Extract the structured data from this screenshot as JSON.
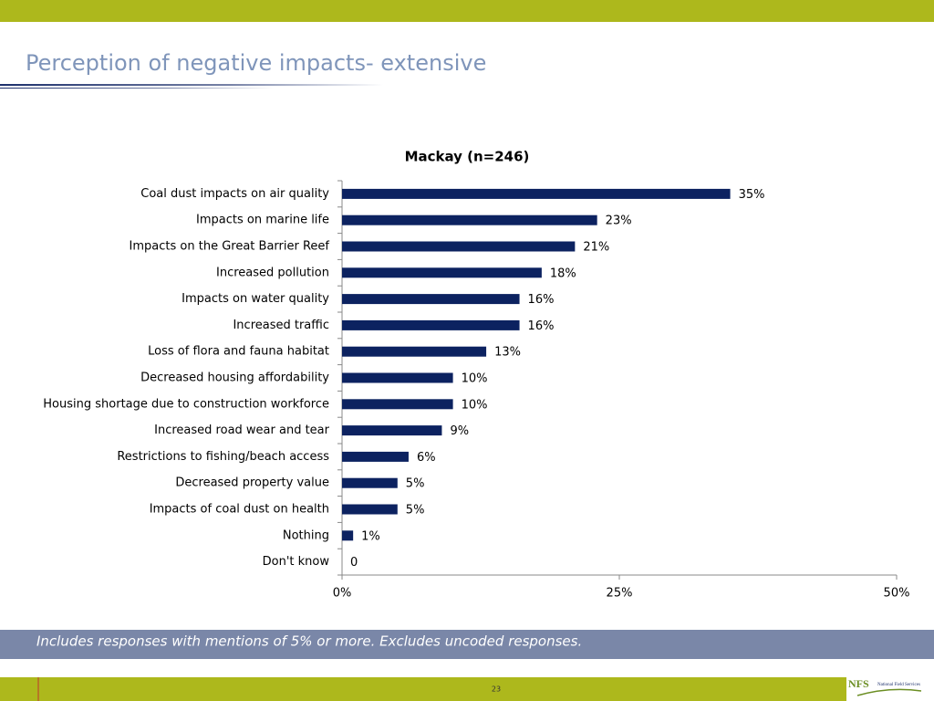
{
  "slide": {
    "title": "Perception of negative impacts- extensive",
    "note": "Includes responses with mentions of 5% or more. Excludes uncoded responses.",
    "page_number": "23",
    "logo": "NFS",
    "logo_subtitle": "National Field Services"
  },
  "chart_data": {
    "type": "hbar",
    "title": "Mackay (n=246)",
    "categories": [
      "Coal dust impacts on air quality",
      "Impacts on marine life",
      "Impacts on the Great Barrier Reef",
      "Increased pollution",
      "Impacts on water quality",
      "Increased traffic",
      "Loss of flora and fauna habitat",
      "Decreased housing affordability",
      "Housing shortage due to construction workforce",
      "Increased road wear and tear",
      "Restrictions to fishing/beach access",
      "Decreased property value",
      "Impacts of coal dust on health",
      "Nothing",
      "Don't know"
    ],
    "values": [
      35,
      23,
      21,
      18,
      16,
      16,
      13,
      10,
      10,
      9,
      6,
      5,
      5,
      1,
      0
    ],
    "value_labels": [
      "35%",
      "23%",
      "21%",
      "18%",
      "16%",
      "16%",
      "13%",
      "10%",
      "10%",
      "9%",
      "6%",
      "5%",
      "5%",
      "1%",
      "0"
    ],
    "color": "#0c2260",
    "xlim": [
      0,
      50
    ],
    "xticks": [
      {
        "value": 0,
        "label": "0%"
      },
      {
        "value": 25,
        "label": "25%"
      },
      {
        "value": 50,
        "label": "50%"
      }
    ]
  }
}
